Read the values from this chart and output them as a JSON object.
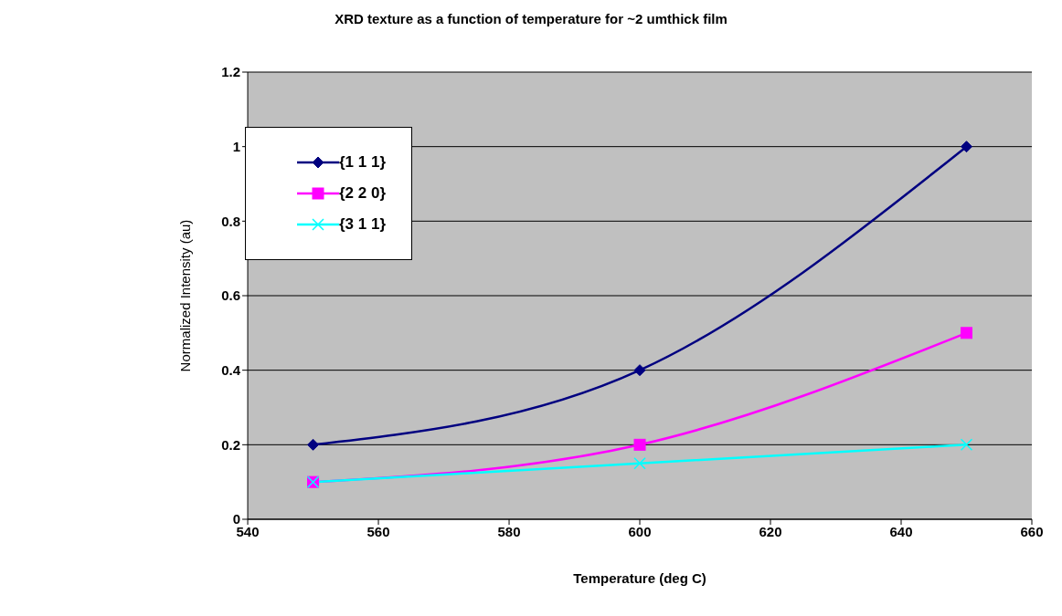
{
  "chart_data": {
    "type": "line",
    "title": "XRD texture as a function of temperature for ~2 umthick film",
    "xlabel": "Temperature (deg C)",
    "ylabel": "Normalized Intensity (au)",
    "x": [
      550,
      600,
      650
    ],
    "series": [
      {
        "name": "{1 1 1}",
        "color": "#000080",
        "marker": "diamond",
        "values": [
          0.2,
          0.4,
          1
        ]
      },
      {
        "name": "{2 2 0}",
        "color": "#ff00ff",
        "marker": "square",
        "values": [
          0.1,
          0.2,
          0.5
        ]
      },
      {
        "name": "{3 1 1}",
        "color": "#00ffff",
        "marker": "cross",
        "values": [
          0.1,
          0.15,
          0.2
        ]
      }
    ],
    "xlim": [
      540,
      660
    ],
    "xticks": [
      540,
      560,
      580,
      600,
      620,
      640,
      660
    ],
    "ylim": [
      0,
      1.2
    ],
    "yticks": [
      0,
      0.2,
      0.4,
      0.6,
      0.8,
      1,
      1.2
    ],
    "grid": "y",
    "legend": "top left"
  }
}
